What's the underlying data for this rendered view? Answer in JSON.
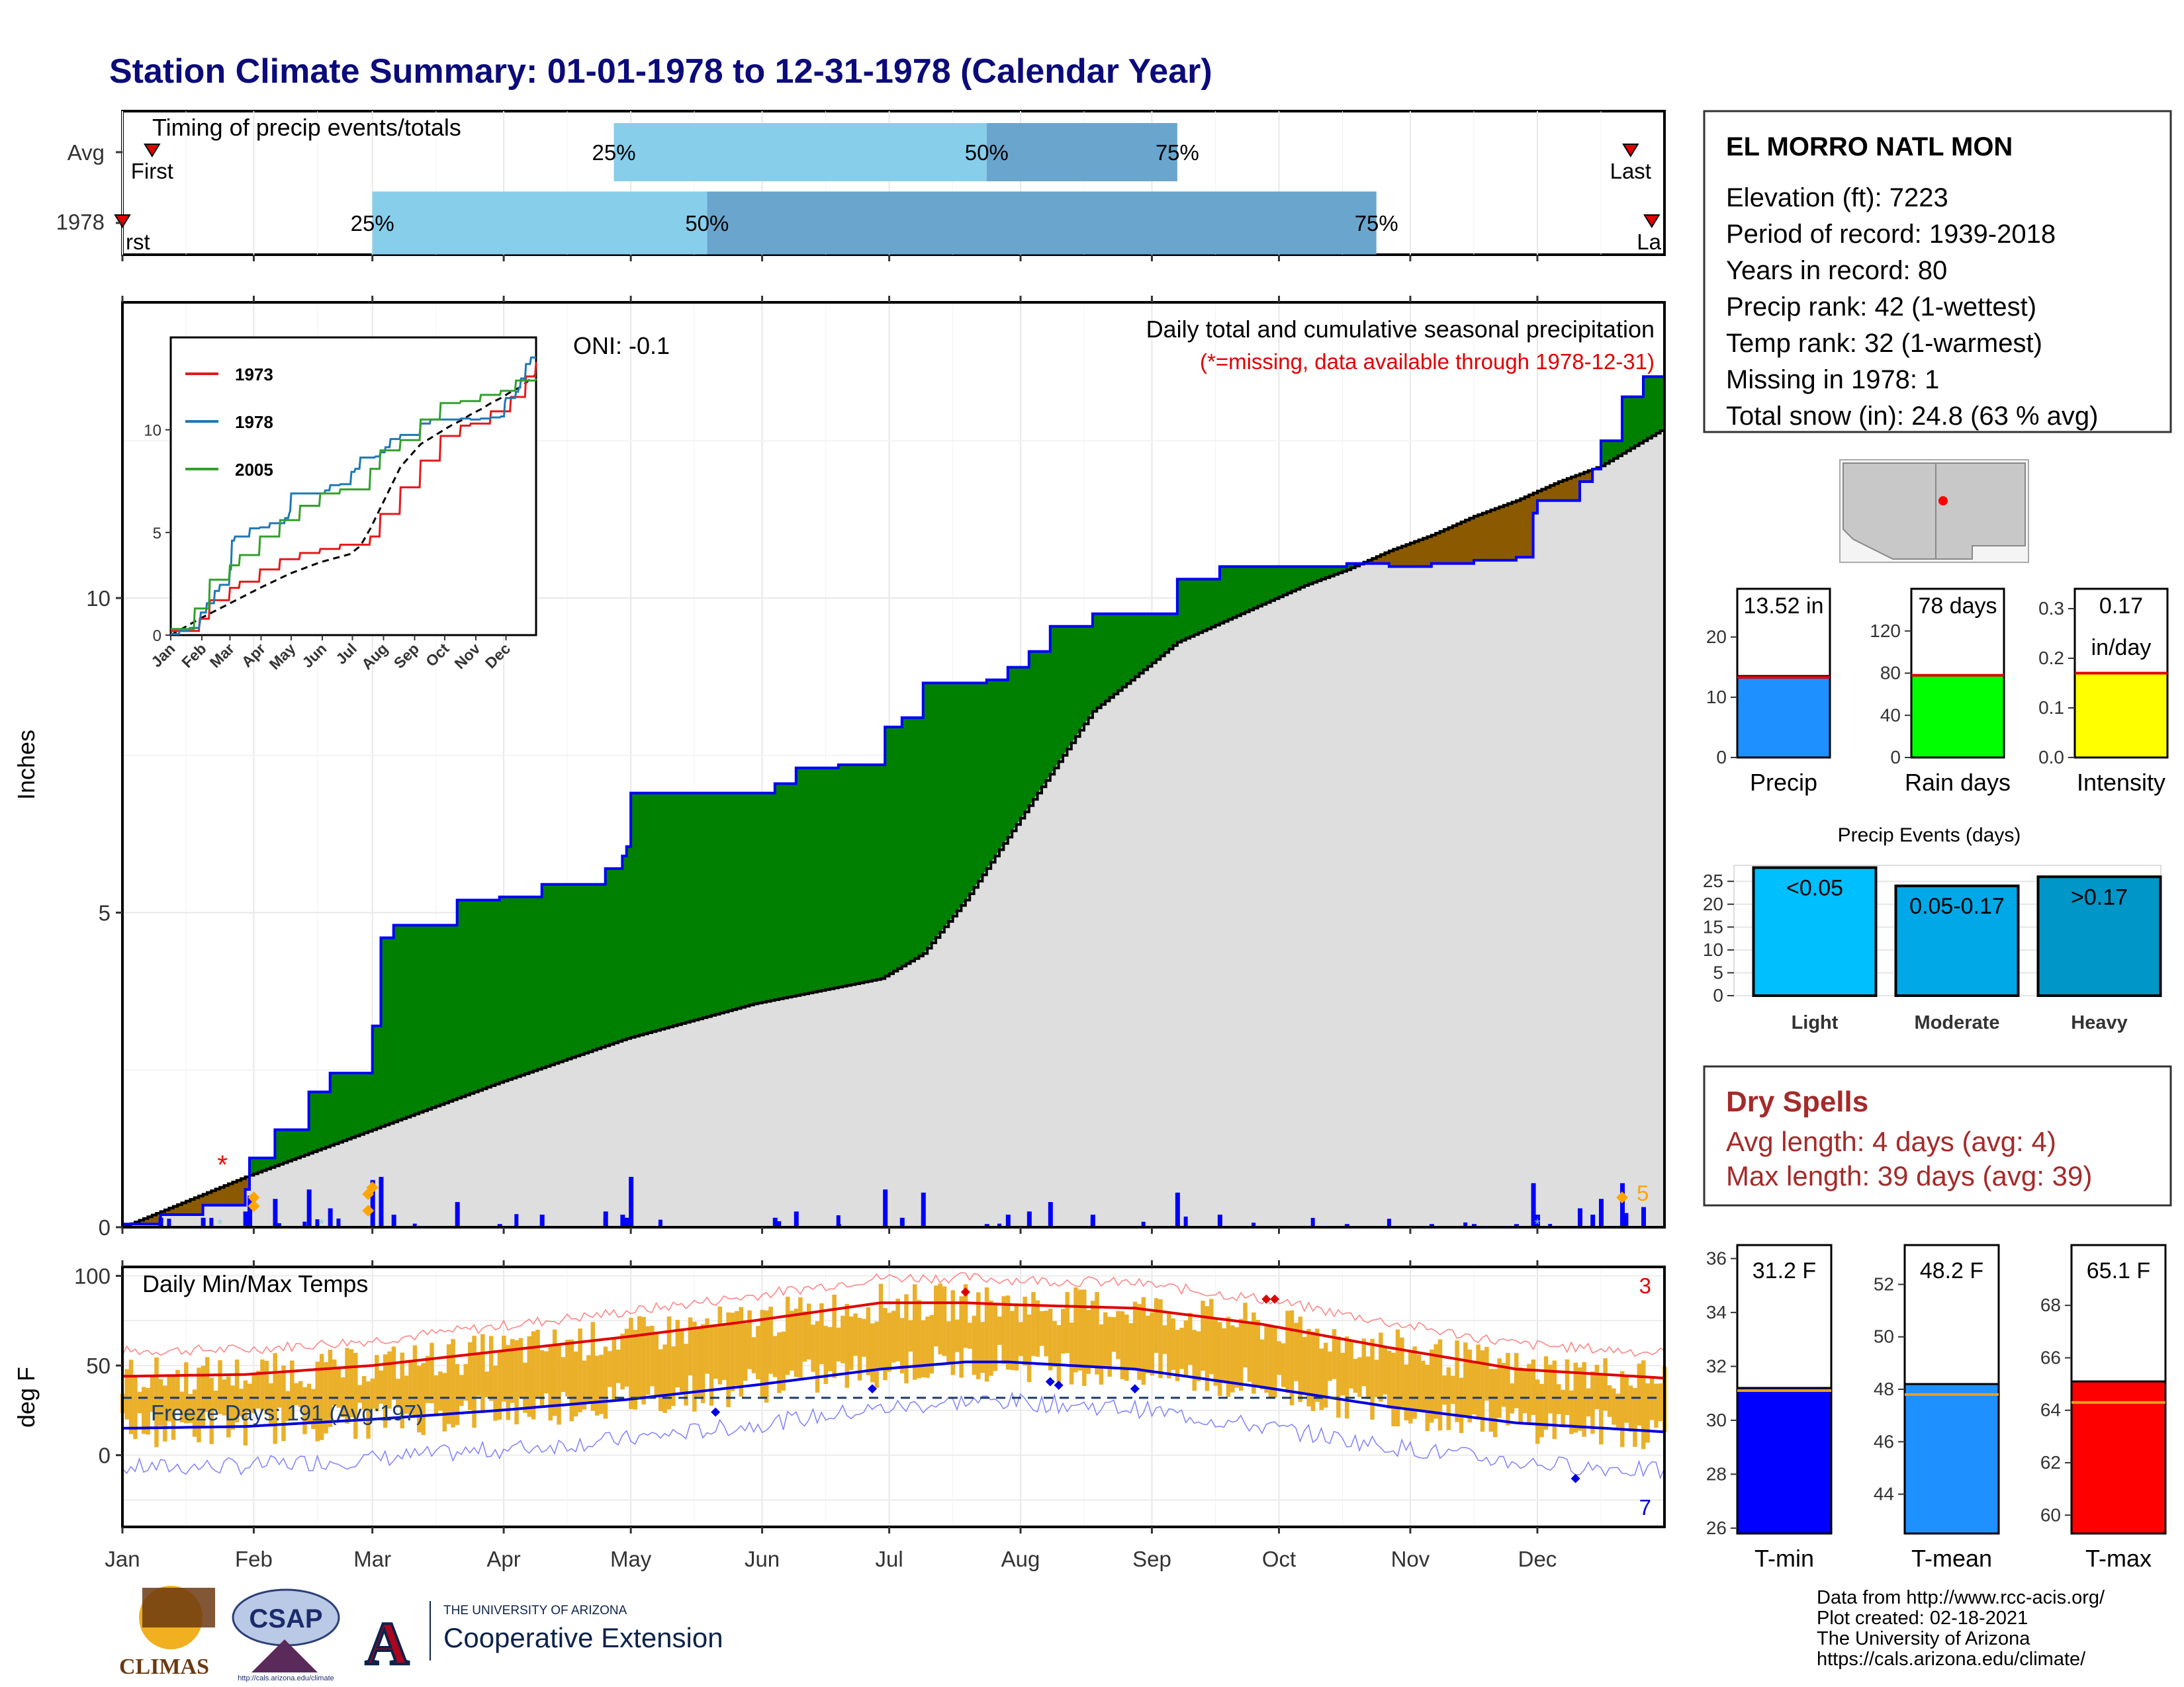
{
  "title": "Station Climate Summary: 01-01-1978 to 12-31-1978 (Calendar Year)",
  "timing": {
    "label": "Timing of precip events/totals",
    "rows": [
      {
        "name": "Avg",
        "first_doy": 8,
        "p25_doy": 117,
        "p50_doy": 205,
        "p75_doy": 250,
        "last_doy": 357
      },
      {
        "name": "1978",
        "first_doy": 1,
        "p25_doy": 60,
        "p50_doy": 139,
        "p75_doy": 297,
        "last_doy": 362
      }
    ],
    "labels": {
      "first": "First",
      "last": "Last",
      "p25": "25%",
      "p50": "50%",
      "p75": "75%"
    },
    "first_1978_label": "rst",
    "last_1978_label": "La"
  },
  "months": [
    "Jan",
    "Feb",
    "Mar",
    "Apr",
    "May",
    "Jun",
    "Jul",
    "Aug",
    "Sep",
    "Oct",
    "Nov",
    "Dec"
  ],
  "precip_panel": {
    "ylabel": "Inches",
    "yticks": [
      0,
      5,
      10
    ],
    "header": "Daily total and cumulative seasonal precipitation",
    "missing_note": "(*=missing, data available through 1978-12-31)",
    "oni": "ONI: -0.1",
    "snow_count": "5",
    "colors": {
      "above": "#008000",
      "below": "#8b5a00",
      "normal_fill": "#dedede",
      "line": "#0000ff"
    }
  },
  "chart_data": [
    {
      "type": "area",
      "title": "Daily total and cumulative seasonal precipitation",
      "ylabel": "Inches",
      "ylim": [
        0,
        14.7
      ],
      "series": [
        {
          "name": "1978",
          "x": [
            1,
            10,
            20,
            30,
            31,
            37,
            45,
            50,
            55,
            58,
            60,
            62,
            65,
            75,
            80,
            90,
            100,
            110,
            115,
            119,
            120,
            121,
            130,
            140,
            145,
            155,
            160,
            170,
            180,
            181,
            185,
            190,
            200,
            205,
            210,
            215,
            220,
            230,
            240,
            243,
            250,
            260,
            270,
            280,
            290,
            300,
            310,
            320,
            330,
            334,
            335,
            345,
            348,
            350,
            355,
            360,
            362,
            365
          ],
          "y": [
            0.05,
            0.2,
            0.35,
            0.6,
            1.1,
            1.55,
            2.15,
            2.45,
            2.45,
            2.45,
            3.2,
            4.6,
            4.8,
            4.8,
            5.2,
            5.25,
            5.45,
            5.45,
            5.7,
            5.9,
            6.05,
            6.9,
            6.9,
            6.9,
            6.9,
            7.05,
            7.3,
            7.35,
            7.35,
            7.95,
            8.1,
            8.65,
            8.65,
            8.7,
            8.9,
            9.15,
            9.55,
            9.75,
            9.75,
            9.75,
            10.3,
            10.5,
            10.5,
            10.5,
            10.55,
            10.5,
            10.55,
            10.6,
            10.65,
            11.35,
            11.55,
            11.85,
            12.05,
            12.5,
            13.2,
            13.52,
            13.52,
            13.52
          ]
        },
        {
          "name": "Avg",
          "x": [
            1,
            30,
            60,
            90,
            120,
            150,
            180,
            190,
            200,
            210,
            220,
            230,
            240,
            250,
            260,
            270,
            280,
            290,
            300,
            310,
            320,
            330,
            340,
            350,
            365
          ],
          "y": [
            0,
            0.8,
            1.55,
            2.3,
            3.0,
            3.55,
            3.95,
            4.35,
            5.2,
            6.2,
            7.2,
            8.2,
            8.75,
            9.3,
            9.6,
            9.9,
            10.2,
            10.45,
            10.75,
            11.0,
            11.3,
            11.55,
            11.85,
            12.1,
            12.7
          ]
        }
      ]
    },
    {
      "type": "line",
      "title": "Daily Min/Max Temps",
      "ylabel": "deg F",
      "yticks": [
        0,
        50,
        100
      ],
      "ylim": [
        -40,
        105
      ],
      "series": [
        {
          "name": "avg max",
          "x": [
            1,
            30,
            60,
            90,
            120,
            150,
            180,
            200,
            210,
            240,
            270,
            300,
            330,
            365
          ],
          "y": [
            44,
            45,
            50,
            58,
            66,
            75,
            85,
            85,
            84,
            82,
            73,
            60,
            48,
            43
          ]
        },
        {
          "name": "avg min",
          "x": [
            1,
            30,
            60,
            90,
            120,
            150,
            180,
            200,
            210,
            240,
            270,
            300,
            330,
            365
          ],
          "y": [
            15,
            16,
            20,
            25,
            31,
            39,
            48,
            52,
            52,
            48,
            38,
            27,
            18,
            13
          ]
        }
      ]
    },
    {
      "type": "bar",
      "title": "Precip Events (days)",
      "categories": [
        "Light",
        "Moderate",
        "Heavy"
      ],
      "bar_labels": [
        "<0.05",
        "0.05-0.17",
        ">0.17"
      ],
      "values": [
        28,
        24,
        26
      ],
      "yticks": [
        0,
        5,
        10,
        15,
        20,
        25
      ],
      "ylim": [
        0,
        28.5
      ]
    },
    {
      "type": "bar",
      "categories": [
        "Precip",
        "Rain days",
        "Intensity",
        "T-min",
        "T-mean",
        "T-max"
      ],
      "values": [
        13.52,
        78,
        0.17,
        31.2,
        48.2,
        65.1
      ],
      "averages": [
        13.3,
        78,
        0.17,
        31.1,
        47.8,
        64.3
      ]
    }
  ],
  "temp_panel": {
    "ylabel": "deg F",
    "yticks": [
      0,
      50,
      100
    ],
    "label": "Daily Min/Max Temps",
    "freeze": "Freeze Days: 191 (Avg:197)",
    "record_high_count": "3",
    "record_low_count": "7"
  },
  "station": {
    "name": "EL MORRO NATL MON",
    "lines": [
      "Elevation (ft): 7223",
      "Period of record: 1939-2018",
      "Years in record: 80",
      "Precip rank: 42 (1-wettest)",
      "Temp rank: 32 (1-warmest)",
      "Missing in 1978: 1",
      "Total snow (in): 24.8 (63 % avg)"
    ]
  },
  "summary_bars": [
    {
      "name": "Precip",
      "label": "13.52 in",
      "value": 13.52,
      "avg": 13.3,
      "ymin": 0,
      "ymax": 28,
      "ticks": [
        0,
        10,
        20
      ],
      "color": "#1e90ff"
    },
    {
      "name": "Rain days",
      "label": "78 days",
      "value": 78,
      "avg": 78,
      "ymin": 0,
      "ymax": 160,
      "ticks": [
        0,
        40,
        80,
        120
      ],
      "color": "#00ff00"
    },
    {
      "name": "Intensity",
      "label": "0.17",
      "label2": "in/day",
      "value": 0.17,
      "avg": 0.17,
      "ymin": 0,
      "ymax": 0.34,
      "ticks": [
        0.0,
        0.1,
        0.2,
        0.3
      ],
      "color": "#ffff00"
    }
  ],
  "events": {
    "title": "Precip Events (days)",
    "categories": [
      "Light",
      "Moderate",
      "Heavy"
    ],
    "labels": [
      "<0.05",
      "0.05-0.17",
      ">0.17"
    ],
    "values": [
      28,
      24,
      26
    ],
    "colors": [
      "#00bfff",
      "#00a8e8",
      "#0096c7"
    ]
  },
  "dry_spells": {
    "title": "Dry Spells",
    "avg": "Avg length: 4 days (avg: 4)",
    "max": "Max length: 39 days (avg: 39)"
  },
  "temp_bars": [
    {
      "name": "T-min",
      "label": "31.2 F",
      "value": 31.2,
      "avg": 31.1,
      "ymin": 25.8,
      "ymax": 36.5,
      "ticks": [
        26,
        28,
        30,
        32,
        34,
        36
      ],
      "color": "#0000ff"
    },
    {
      "name": "T-mean",
      "label": "48.2 F",
      "value": 48.2,
      "avg": 47.8,
      "ymin": 42.5,
      "ymax": 53.5,
      "ticks": [
        44,
        46,
        48,
        50,
        52
      ],
      "color": "#1e90ff"
    },
    {
      "name": "T-max",
      "label": "65.1 F",
      "value": 65.1,
      "avg": 64.3,
      "ymin": 59.3,
      "ymax": 70.3,
      "ticks": [
        60,
        62,
        64,
        66,
        68
      ],
      "color": "#ff0000"
    }
  ],
  "inset": {
    "legend": [
      "1973",
      "1978",
      "2005"
    ],
    "colors": [
      "#e31a1c",
      "#1f78b4",
      "#33a02c"
    ],
    "yticks": [
      0,
      5,
      10
    ]
  },
  "credits": [
    "Data from http://www.rcc-acis.org/",
    "Plot created: 02-18-2021",
    "The University of Arizona",
    "https://cals.arizona.edu/climate/"
  ],
  "logos": {
    "climas": "CLIMAS",
    "csap": "CSAP",
    "csap_url": "http://cals.arizona.edu/climate",
    "ua_small": "THE UNIVERSITY OF ARIZONA",
    "ua_big": "Cooperative Extension"
  }
}
